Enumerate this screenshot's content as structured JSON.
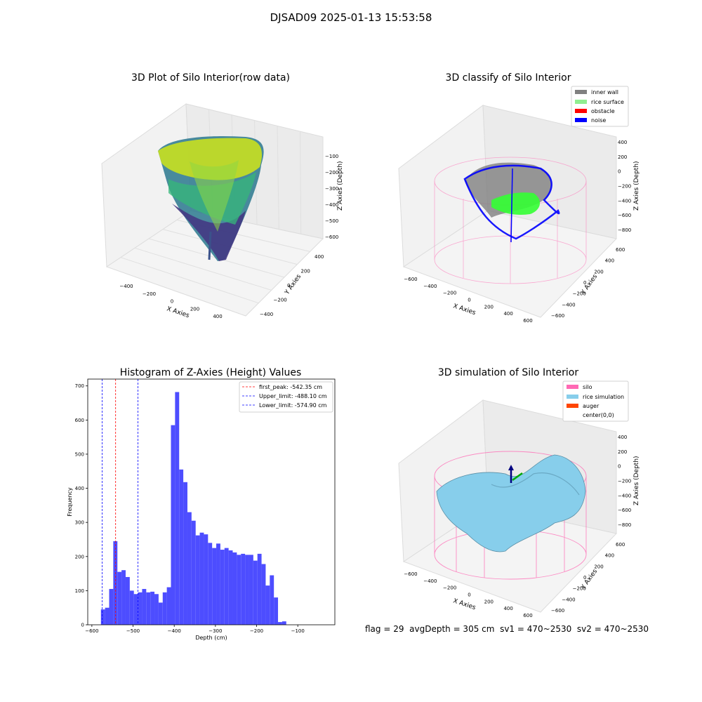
{
  "figure_title": "DJSAD09 2025-01-13 15:53:58",
  "footer": {
    "flag": "flag = 29",
    "avg_depth": "avgDepth = 305 cm",
    "sv1": "sv1 = 470~2530",
    "sv2": "sv2 = 470~2530"
  },
  "colors": {
    "pane": "#f2f2f2",
    "pane_grid": "#e3e3e3",
    "inner_wall": "#808080",
    "rice_surface": "#90ee90",
    "obstacle": "#ff0000",
    "noise": "#0000ff",
    "silo": "#ff69b4",
    "rice_simulation": "#87ceeb",
    "auger": "#ff4500",
    "hist_bar": "#4d4dff",
    "first_peak_line": "#ff0000",
    "limit_line": "#0000ff"
  },
  "panel1": {
    "title": "3D Plot of Silo Interior(row data)",
    "xlabel": "X Axies",
    "ylabel": "Y Axies",
    "zlabel": "Z Axies (Depth)",
    "x_ticks": [
      "−400",
      "−200",
      "0",
      "200",
      "400"
    ],
    "y_ticks": [
      "−400",
      "−200",
      "0",
      "200",
      "400"
    ],
    "z_ticks": [
      "−100",
      "−200",
      "−300",
      "−400",
      "−500",
      "−600"
    ]
  },
  "panel2": {
    "title": "3D classify of Silo Interior",
    "xlabel": "X Axies",
    "ylabel": "Y Axies",
    "zlabel": "Z Axies (Depth)",
    "x_ticks": [
      "−600",
      "−400",
      "−200",
      "0",
      "200",
      "400",
      "600"
    ],
    "y_ticks": [
      "−600",
      "−400",
      "−200",
      "0",
      "200",
      "400",
      "600"
    ],
    "z_ticks": [
      "400",
      "200",
      "0",
      "−200",
      "−400",
      "−600",
      "−800"
    ],
    "legend": [
      "inner wall",
      "rice surface",
      "obstacle",
      "noise"
    ]
  },
  "panel4": {
    "title": "3D simulation of Silo Interior",
    "xlabel": "X Axies",
    "ylabel": "Y Axies",
    "zlabel": "Z Axies (Depth)",
    "x_ticks": [
      "−600",
      "−400",
      "−200",
      "0",
      "200",
      "400",
      "600"
    ],
    "y_ticks": [
      "−600",
      "−400",
      "−200",
      "0",
      "200",
      "400",
      "600"
    ],
    "z_ticks": [
      "400",
      "200",
      "0",
      "−200",
      "−400",
      "−600",
      "−800"
    ],
    "legend": [
      "silo",
      "rice simulation",
      "auger",
      "center(0,0)"
    ]
  },
  "chart_data": {
    "type": "bar",
    "title": "Histogram of Z-Axies (Height) Values",
    "xlabel": "Depth (cm)",
    "ylabel": "Frequency",
    "xlim": [
      -610,
      -10
    ],
    "ylim": [
      0,
      720
    ],
    "x_ticks": [
      -600,
      -500,
      -400,
      -300,
      -200,
      -100
    ],
    "x_tick_labels": [
      "−600",
      "−500",
      "−400",
      "−300",
      "−200",
      "−100"
    ],
    "y_ticks": [
      0,
      100,
      200,
      300,
      400,
      500,
      600,
      700
    ],
    "bin_start": -578,
    "bin_width": 10,
    "values": [
      45,
      50,
      105,
      245,
      155,
      160,
      140,
      100,
      90,
      95,
      105,
      95,
      97,
      90,
      65,
      95,
      110,
      585,
      682,
      455,
      418,
      330,
      305,
      262,
      270,
      265,
      240,
      225,
      238,
      220,
      225,
      218,
      212,
      205,
      208,
      205,
      205,
      188,
      208,
      178,
      115,
      145,
      80,
      8,
      10
    ],
    "legend_placement": "top-right",
    "vlines": [
      {
        "label": "first_peak: -542.35 cm",
        "x": -542.35,
        "color": "#ff0000"
      },
      {
        "label": "Upper_limit: -488.10 cm",
        "x": -488.1,
        "color": "#0000ff"
      },
      {
        "label": "Lower_limit: -574.90 cm",
        "x": -574.9,
        "color": "#0000ff"
      }
    ]
  }
}
